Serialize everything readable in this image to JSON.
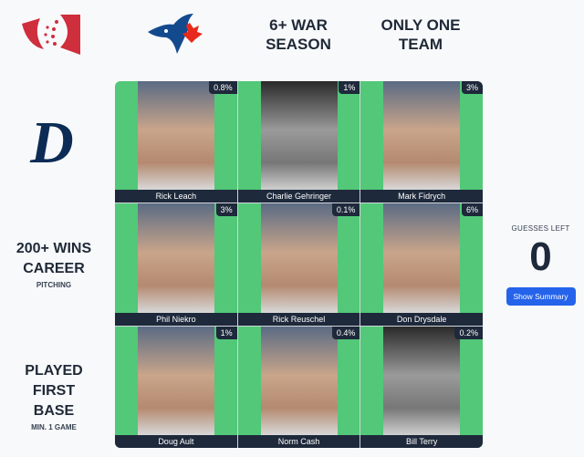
{
  "columns": [
    {
      "type": "team-logo",
      "team": "Toronto Blue Jays",
      "icon": "blue-jays-logo"
    },
    {
      "label": "6+ WAR SEASON"
    },
    {
      "label": "ONLY ONE TEAM"
    }
  ],
  "rows": [
    {
      "type": "team-logo",
      "team": "Detroit Tigers",
      "icon": "tigers-d-logo"
    },
    {
      "label": "200+ WINS CAREER",
      "sub": "PITCHING"
    },
    {
      "label": "PLAYED FIRST BASE",
      "sub": "MIN. 1 GAME"
    }
  ],
  "cells": [
    {
      "name": "Rick Leach",
      "pct": "0.8%",
      "bw": false
    },
    {
      "name": "Charlie Gehringer",
      "pct": "1%",
      "bw": true
    },
    {
      "name": "Mark Fidrych",
      "pct": "3%",
      "bw": false
    },
    {
      "name": "Phil Niekro",
      "pct": "3%",
      "bw": false
    },
    {
      "name": "Rick Reuschel",
      "pct": "0.1%",
      "bw": false
    },
    {
      "name": "Don Drysdale",
      "pct": "6%",
      "bw": false
    },
    {
      "name": "Doug Ault",
      "pct": "1%",
      "bw": false
    },
    {
      "name": "Norm Cash",
      "pct": "0.4%",
      "bw": false
    },
    {
      "name": "Bill Terry",
      "pct": "0.2%",
      "bw": true
    }
  ],
  "side": {
    "guesses_label": "GUESSES LEFT",
    "guesses_left": "0",
    "summary_button": "Show Summary"
  },
  "colors": {
    "correct": "#52c878",
    "label_bg": "#1e293b",
    "button": "#2563eb"
  }
}
